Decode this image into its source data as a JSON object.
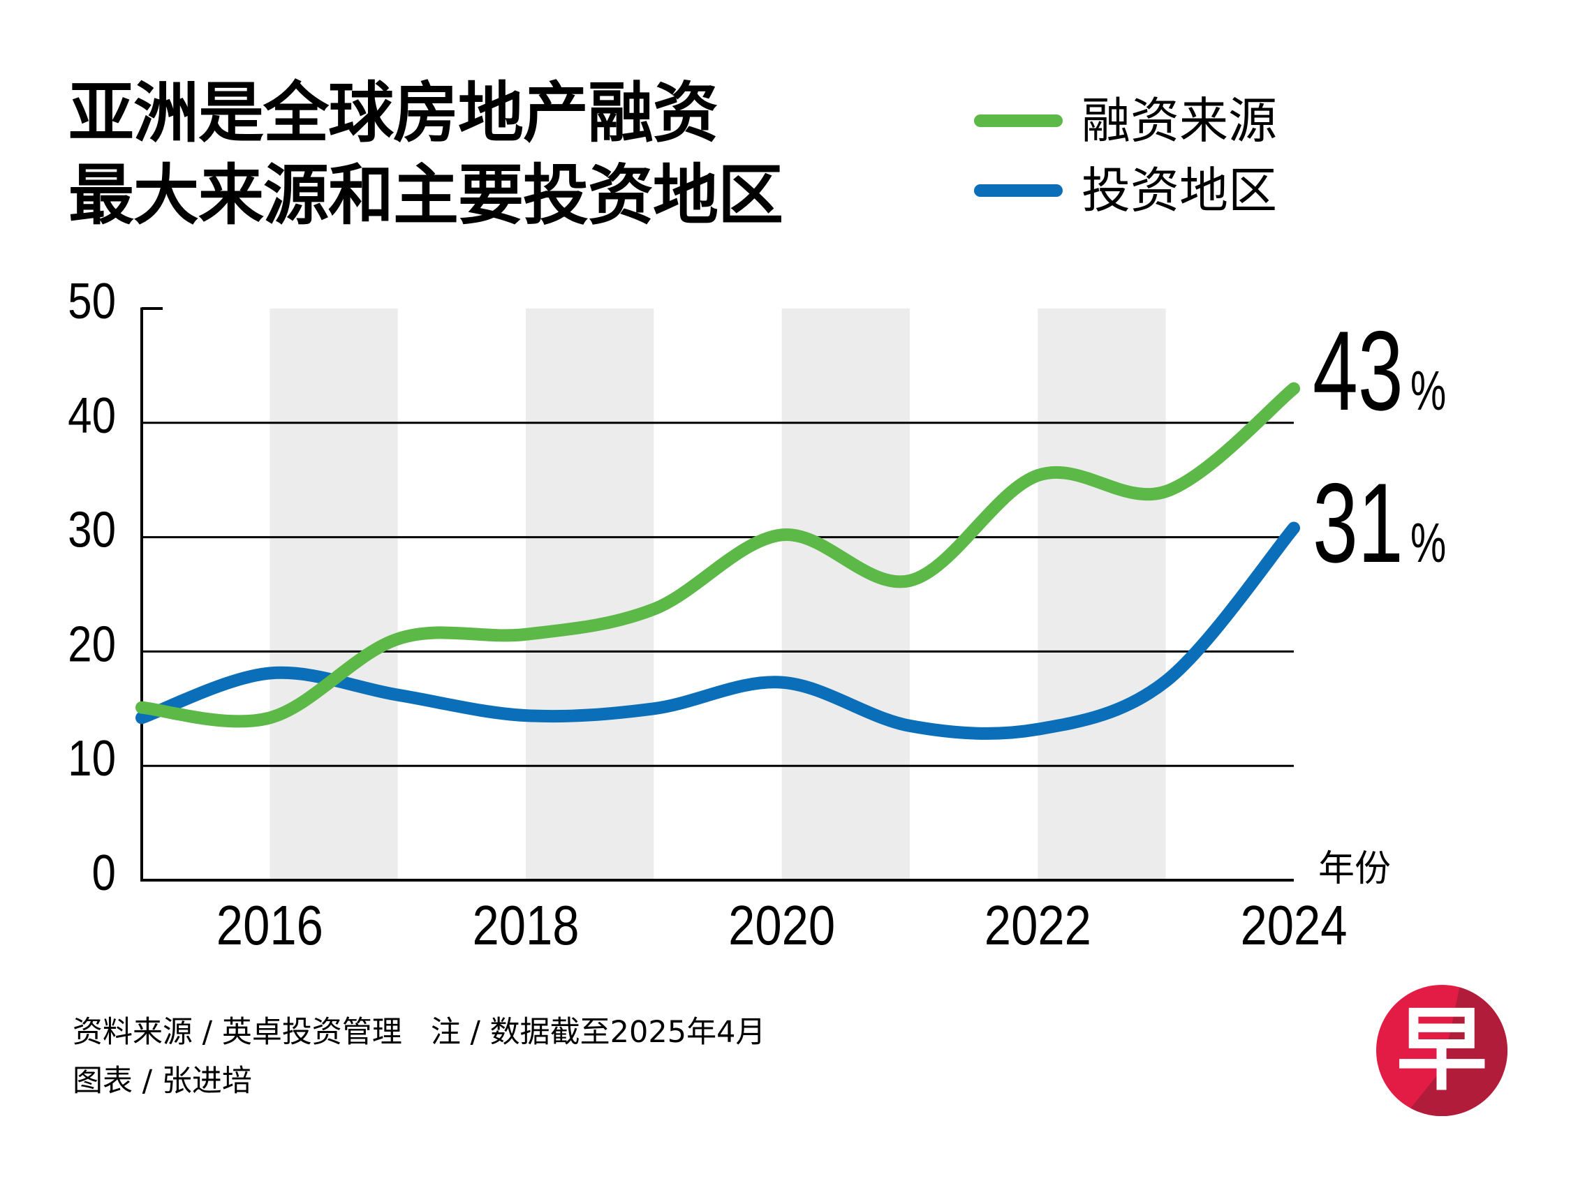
{
  "title": {
    "line1": "亚洲是全球房地产融资",
    "line2": "最大来源和主要投资地区"
  },
  "legend": [
    {
      "label": "融资来源",
      "color": "#5cb947"
    },
    {
      "label": "投资地区",
      "color": "#0a6fb8"
    }
  ],
  "chart_data": {
    "type": "line",
    "title": "亚洲是全球房地产融资最大来源和主要投资地区",
    "xlabel": "年份",
    "ylabel": "",
    "unit": "%",
    "x": [
      2015,
      2016,
      2017,
      2018,
      2019,
      2020,
      2021,
      2022,
      2023,
      2024
    ],
    "xlim": [
      2015,
      2024
    ],
    "ylim": [
      0,
      50
    ],
    "yticks": [
      0,
      10,
      20,
      30,
      40,
      50
    ],
    "xtick_labels": [
      "2016",
      "2018",
      "2020",
      "2022",
      "2024"
    ],
    "xtick_values": [
      2016,
      2018,
      2020,
      2022,
      2024
    ],
    "shaded_bands": [
      [
        2016,
        2017
      ],
      [
        2018,
        2019
      ],
      [
        2020,
        2021
      ],
      [
        2022,
        2023
      ]
    ],
    "grid": "horizontal",
    "legend_position": "top-right",
    "series": [
      {
        "name": "融资来源",
        "color": "#5cb947",
        "values": [
          15.1,
          14.2,
          21.1,
          21.5,
          23.7,
          30.2,
          26.2,
          35.4,
          34.0,
          43.0
        ]
      },
      {
        "name": "投资地区",
        "color": "#0a6fb8",
        "values": [
          14.2,
          18.1,
          16.2,
          14.4,
          15.0,
          17.3,
          13.5,
          13.2,
          17.4,
          30.8
        ]
      }
    ],
    "annotations": [
      {
        "series": "融资来源",
        "value": "43",
        "suffix": "%"
      },
      {
        "series": "投资地区",
        "value": "31",
        "suffix": "%"
      }
    ]
  },
  "footer": {
    "line1": "资料来源 / 英卓投资管理   注 / 数据截至2025年4月",
    "line2": "图表 / 张进培"
  },
  "logo": {
    "glyph": "早",
    "color_left": "#e31c46",
    "color_right": "#b01c3a"
  }
}
